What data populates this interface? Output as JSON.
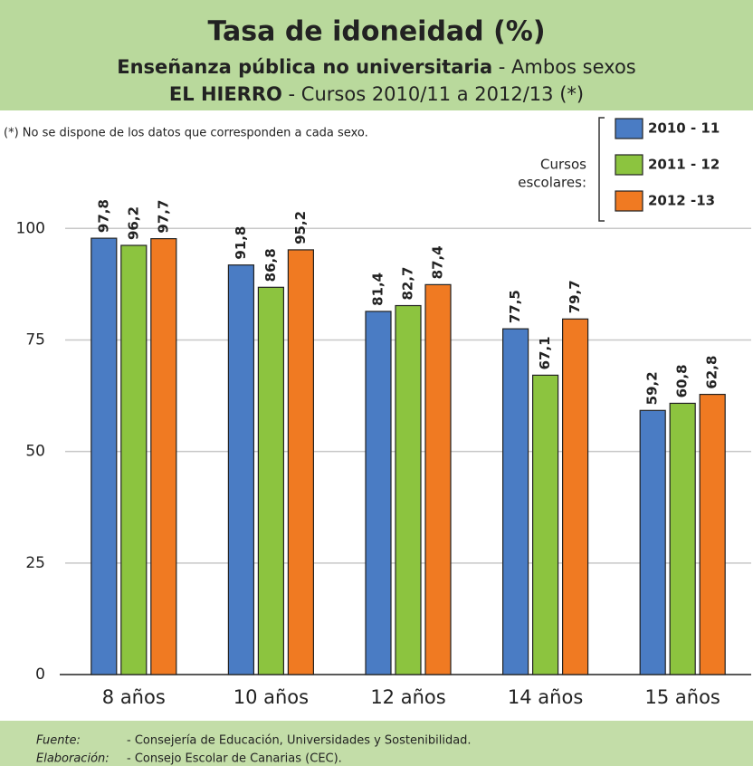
{
  "chart_data": {
    "type": "bar",
    "title": "Tasa de idoneidad (%)",
    "subtitle": [
      [
        "Enseñanza pública no universitaria",
        " - Ambos sexos"
      ],
      [
        "EL HIERRO",
        " - Cursos 2010/11 a 2012/13 (*)"
      ]
    ],
    "note": "(*) No se dispone de los datos que corresponden a cada sexo.",
    "legend_title": [
      "Cursos",
      "escolares:"
    ],
    "categories": [
      "8 años",
      "10 años",
      "12 años",
      "14 años",
      "15 años"
    ],
    "series": [
      {
        "name": "2010 - 11",
        "color": "#4a7cc4",
        "values": [
          97.8,
          91.8,
          81.4,
          77.5,
          59.2
        ],
        "value_labels": [
          "97,8",
          "91,8",
          "81,4",
          "77,5",
          "59,2"
        ]
      },
      {
        "name": "2011 - 12",
        "color": "#8cc43f",
        "values": [
          96.2,
          86.8,
          82.7,
          67.1,
          60.8
        ],
        "value_labels": [
          "96,2",
          "86,8",
          "82,7",
          "67,1",
          "60,8"
        ]
      },
      {
        "name": "2012 -13",
        "color": "#f07a22",
        "values": [
          97.7,
          95.2,
          87.4,
          79.7,
          62.8
        ],
        "value_labels": [
          "97,7",
          "95,2",
          "87,4",
          "79,7",
          "62,8"
        ]
      }
    ],
    "ylim": [
      0,
      110
    ],
    "yticks": [
      0,
      25,
      50,
      75,
      100
    ],
    "grid": true,
    "legend": "upper right",
    "source": [
      [
        "Fuente:",
        "- Consejería de Educación, Universidades y Sostenibilidad."
      ],
      [
        "Elaboración:",
        "- Consejo Escolar de Canarias (CEC)."
      ]
    ]
  }
}
